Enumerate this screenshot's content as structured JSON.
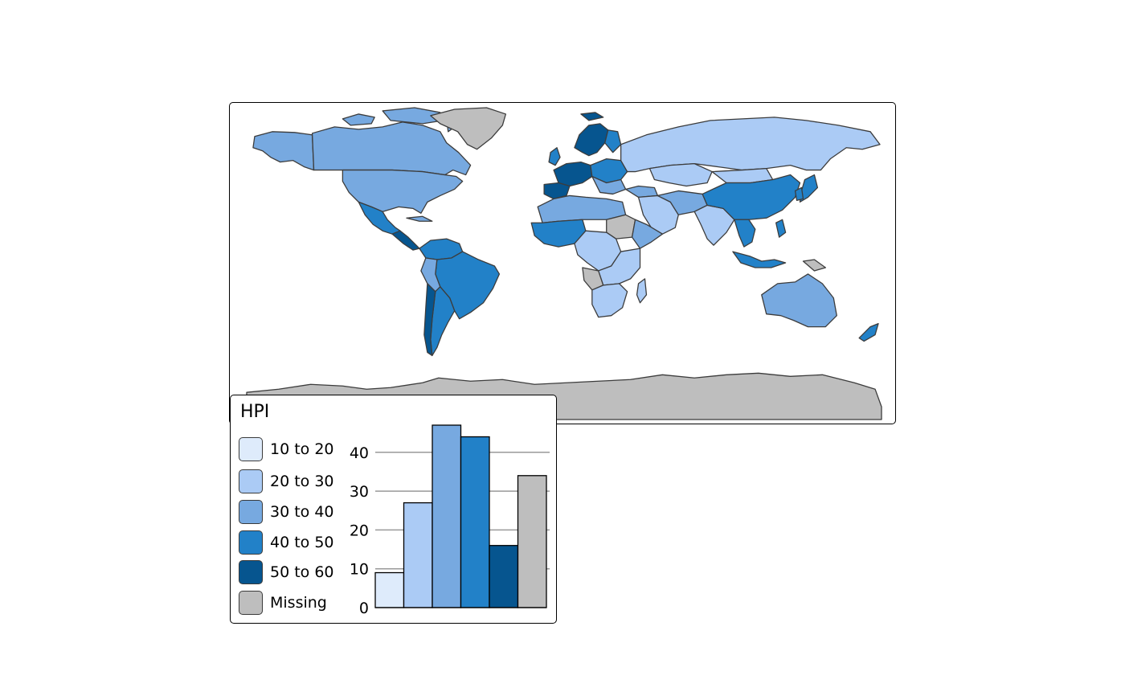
{
  "map": {
    "colors": {
      "class_10_20": "#deebfb",
      "class_20_30": "#abcbf5",
      "class_30_40": "#77a9e0",
      "class_40_50": "#2281c8",
      "class_50_60": "#06558f",
      "missing": "#bebebe",
      "border": "#3c3c3c"
    }
  },
  "legend": {
    "title": "HPI",
    "items": [
      {
        "label": "10 to 20",
        "color": "#deebfb"
      },
      {
        "label": "20 to 30",
        "color": "#abcbf5"
      },
      {
        "label": "30 to 40",
        "color": "#77a9e0"
      },
      {
        "label": "40 to 50",
        "color": "#2281c8"
      },
      {
        "label": "50 to 60",
        "color": "#06558f"
      },
      {
        "label": "Missing",
        "color": "#bebebe"
      }
    ]
  },
  "chart_data": {
    "type": "bar",
    "categories": [
      "10 to 20",
      "20 to 30",
      "30 to 40",
      "40 to 50",
      "50 to 60",
      "Missing"
    ],
    "values": [
      9,
      27,
      47,
      44,
      16,
      34
    ],
    "colors": [
      "#deebfb",
      "#abcbf5",
      "#77a9e0",
      "#2281c8",
      "#06558f",
      "#bebebe"
    ],
    "yticks": [
      0,
      10,
      20,
      30,
      40
    ],
    "ylim": [
      0,
      47
    ],
    "grid": true
  }
}
